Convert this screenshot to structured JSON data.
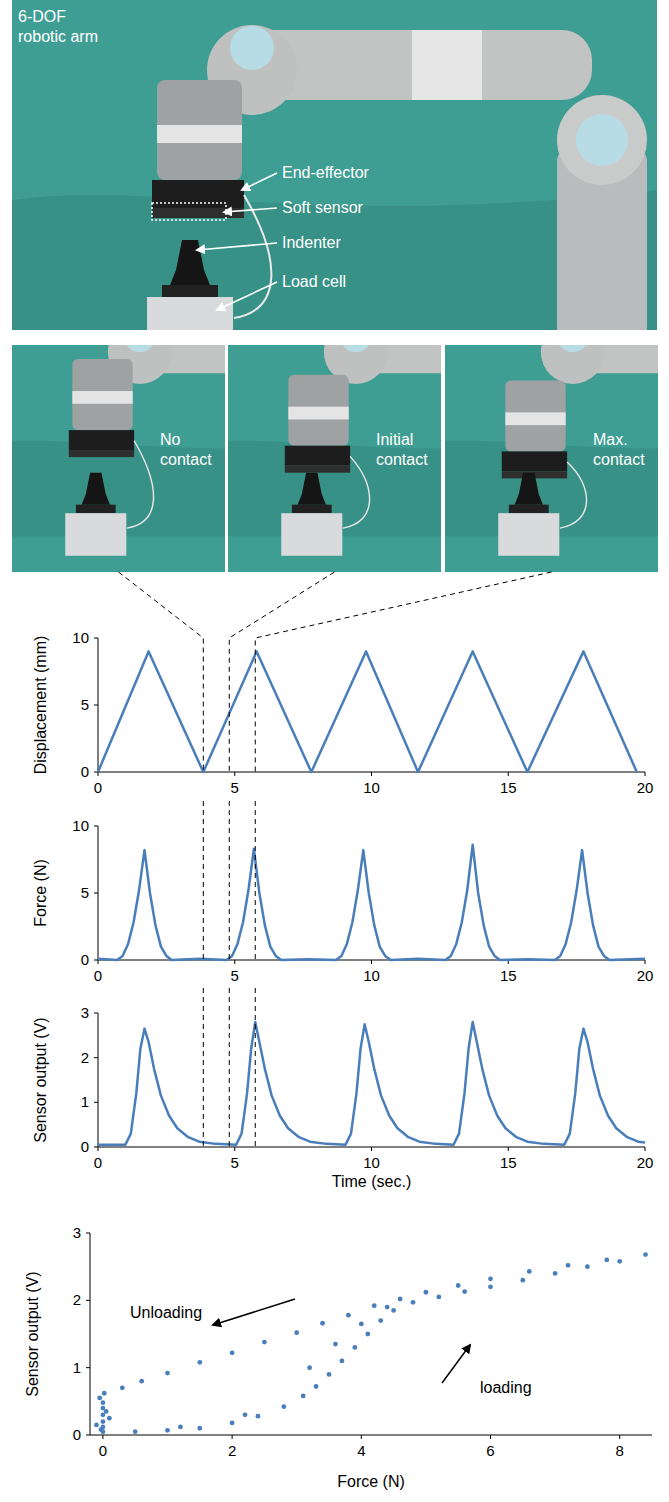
{
  "photos": {
    "labels": [
      "6-DOF robotic arm",
      "End-effector",
      "Soft sensor",
      "Indenter",
      "Load cell"
    ],
    "frames": [
      {
        "label": "No contact",
        "time": 3.85
      },
      {
        "label": "Initial contact",
        "time": 4.8
      },
      {
        "label": "Max. contact",
        "time": 5.75
      }
    ]
  },
  "chart_data": [
    {
      "type": "line",
      "ylabel": "Displacement (mm)",
      "color": "#4a7ebb",
      "x": [
        0,
        1.85,
        3.85,
        5.8,
        7.8,
        9.8,
        11.7,
        13.7,
        15.7,
        17.75,
        19.7
      ],
      "values": [
        0,
        9,
        0,
        9,
        0,
        9,
        0,
        9,
        0,
        9,
        0
      ],
      "xlim": [
        0,
        20
      ],
      "ylim": [
        0,
        10
      ],
      "xticks": [
        0,
        5,
        10,
        15,
        20
      ],
      "yticks": [
        0,
        5,
        10
      ]
    },
    {
      "type": "line",
      "ylabel": "Force (N)",
      "color": "#4a7ebb",
      "x": [
        0,
        0.7,
        0.9,
        1.1,
        1.3,
        1.5,
        1.7,
        1.9,
        2.1,
        2.3,
        2.5,
        2.7,
        3.7,
        4.7,
        4.9,
        5.1,
        5.3,
        5.5,
        5.7,
        5.9,
        6.1,
        6.3,
        6.5,
        6.7,
        7.7,
        8.7,
        8.9,
        9.1,
        9.3,
        9.5,
        9.7,
        9.9,
        10.1,
        10.3,
        10.5,
        10.7,
        11.7,
        12.7,
        12.9,
        13.1,
        13.3,
        13.5,
        13.7,
        13.9,
        14.1,
        14.3,
        14.5,
        14.7,
        15.7,
        16.7,
        16.9,
        17.1,
        17.3,
        17.5,
        17.7,
        17.9,
        18.1,
        18.3,
        18.5,
        18.7,
        20
      ],
      "values": [
        0.1,
        0,
        0.3,
        1.2,
        2.8,
        5.2,
        8.2,
        5.0,
        2.6,
        1.0,
        0.3,
        0,
        0.1,
        0,
        0.3,
        1.2,
        2.8,
        5.2,
        8.3,
        5.0,
        2.6,
        1.0,
        0.3,
        0,
        0.05,
        0,
        0.3,
        1.2,
        2.8,
        5.2,
        8.2,
        5.0,
        2.6,
        1.0,
        0.3,
        0,
        0.1,
        0,
        0.3,
        1.2,
        2.8,
        5.2,
        8.6,
        5.0,
        2.6,
        1.0,
        0.3,
        0,
        0.05,
        0,
        0.3,
        1.2,
        2.8,
        5.2,
        8.2,
        5.0,
        2.6,
        1.0,
        0.3,
        0,
        0.1
      ],
      "xlim": [
        0,
        20
      ],
      "ylim": [
        0,
        10
      ],
      "xticks": [
        0,
        5,
        10,
        15,
        20
      ],
      "yticks": [
        0,
        5,
        10
      ]
    },
    {
      "type": "line",
      "ylabel": "Sensor output (V)",
      "xlabel": "Time (sec.)",
      "color": "#4a7ebb",
      "x": [
        0,
        1.0,
        1.2,
        1.4,
        1.55,
        1.7,
        1.85,
        2.05,
        2.3,
        2.6,
        2.9,
        3.3,
        3.7,
        4.3,
        5.05,
        5.25,
        5.45,
        5.6,
        5.75,
        5.9,
        6.1,
        6.35,
        6.65,
        6.95,
        7.35,
        7.75,
        8.35,
        9.05,
        9.25,
        9.45,
        9.6,
        9.75,
        9.9,
        10.1,
        10.35,
        10.65,
        10.95,
        11.35,
        11.75,
        12.35,
        13.0,
        13.2,
        13.4,
        13.55,
        13.7,
        13.85,
        14.05,
        14.3,
        14.6,
        14.9,
        15.3,
        15.7,
        16.3,
        17.05,
        17.25,
        17.45,
        17.6,
        17.75,
        17.9,
        18.1,
        18.35,
        18.65,
        18.95,
        19.35,
        19.75,
        20
      ],
      "values": [
        0.05,
        0.05,
        0.3,
        1.2,
        2.2,
        2.65,
        2.35,
        1.75,
        1.15,
        0.7,
        0.42,
        0.22,
        0.12,
        0.07,
        0.05,
        0.3,
        1.2,
        2.2,
        2.8,
        2.35,
        1.75,
        1.15,
        0.7,
        0.42,
        0.22,
        0.12,
        0.07,
        0.05,
        0.3,
        1.2,
        2.2,
        2.75,
        2.35,
        1.75,
        1.15,
        0.7,
        0.42,
        0.22,
        0.12,
        0.07,
        0.05,
        0.3,
        1.2,
        2.2,
        2.8,
        2.35,
        1.75,
        1.15,
        0.7,
        0.42,
        0.22,
        0.12,
        0.07,
        0.05,
        0.3,
        1.2,
        2.2,
        2.65,
        2.35,
        1.75,
        1.15,
        0.7,
        0.42,
        0.22,
        0.12,
        0.1
      ],
      "xlim": [
        0,
        20
      ],
      "ylim": [
        0,
        3
      ],
      "xticks": [
        0,
        5,
        10,
        15,
        20
      ],
      "yticks": [
        0,
        1,
        2,
        3
      ]
    },
    {
      "type": "scatter",
      "xlabel": "Force (N)",
      "ylabel": "Sensor output (V)",
      "color": "#4a7ebb",
      "marker": "circle",
      "annotations": [
        "Unloading",
        "loading"
      ],
      "x": [
        0,
        0,
        0,
        0,
        0,
        -0.05,
        0.05,
        -0.1,
        0.1,
        0,
        0.02,
        -0.03,
        0.5,
        1.0,
        1.5,
        2.0,
        2.4,
        2.8,
        3.1,
        3.3,
        3.5,
        3.7,
        3.9,
        4.1,
        4.3,
        4.5,
        4.8,
        5.2,
        5.6,
        6.0,
        6.5,
        7.0,
        7.5,
        8.0,
        8.4,
        7.8,
        7.2,
        6.6,
        6.0,
        5.5,
        5.0,
        4.6,
        4.2,
        3.8,
        3.4,
        3.0,
        2.5,
        2.0,
        1.5,
        1.0,
        0.6,
        0.3,
        3.2,
        3.6,
        4.0,
        4.4,
        2.2,
        1.2
      ],
      "values": [
        0.05,
        0.12,
        0.2,
        0.3,
        0.4,
        0.55,
        0.35,
        0.15,
        0.25,
        0.48,
        0.62,
        0.08,
        0.05,
        0.07,
        0.1,
        0.18,
        0.28,
        0.42,
        0.58,
        0.72,
        0.9,
        1.1,
        1.3,
        1.5,
        1.7,
        1.85,
        1.97,
        2.05,
        2.13,
        2.2,
        2.3,
        2.4,
        2.5,
        2.58,
        2.68,
        2.6,
        2.52,
        2.43,
        2.32,
        2.22,
        2.12,
        2.02,
        1.92,
        1.78,
        1.66,
        1.52,
        1.38,
        1.22,
        1.08,
        0.92,
        0.8,
        0.7,
        1.0,
        1.35,
        1.65,
        1.9,
        0.3,
        0.12
      ],
      "xlim": [
        -0.2,
        8.5
      ],
      "ylim": [
        0,
        3
      ],
      "xticks": [
        0,
        2,
        4,
        6,
        8
      ],
      "yticks": [
        0,
        1,
        2,
        3
      ]
    }
  ]
}
